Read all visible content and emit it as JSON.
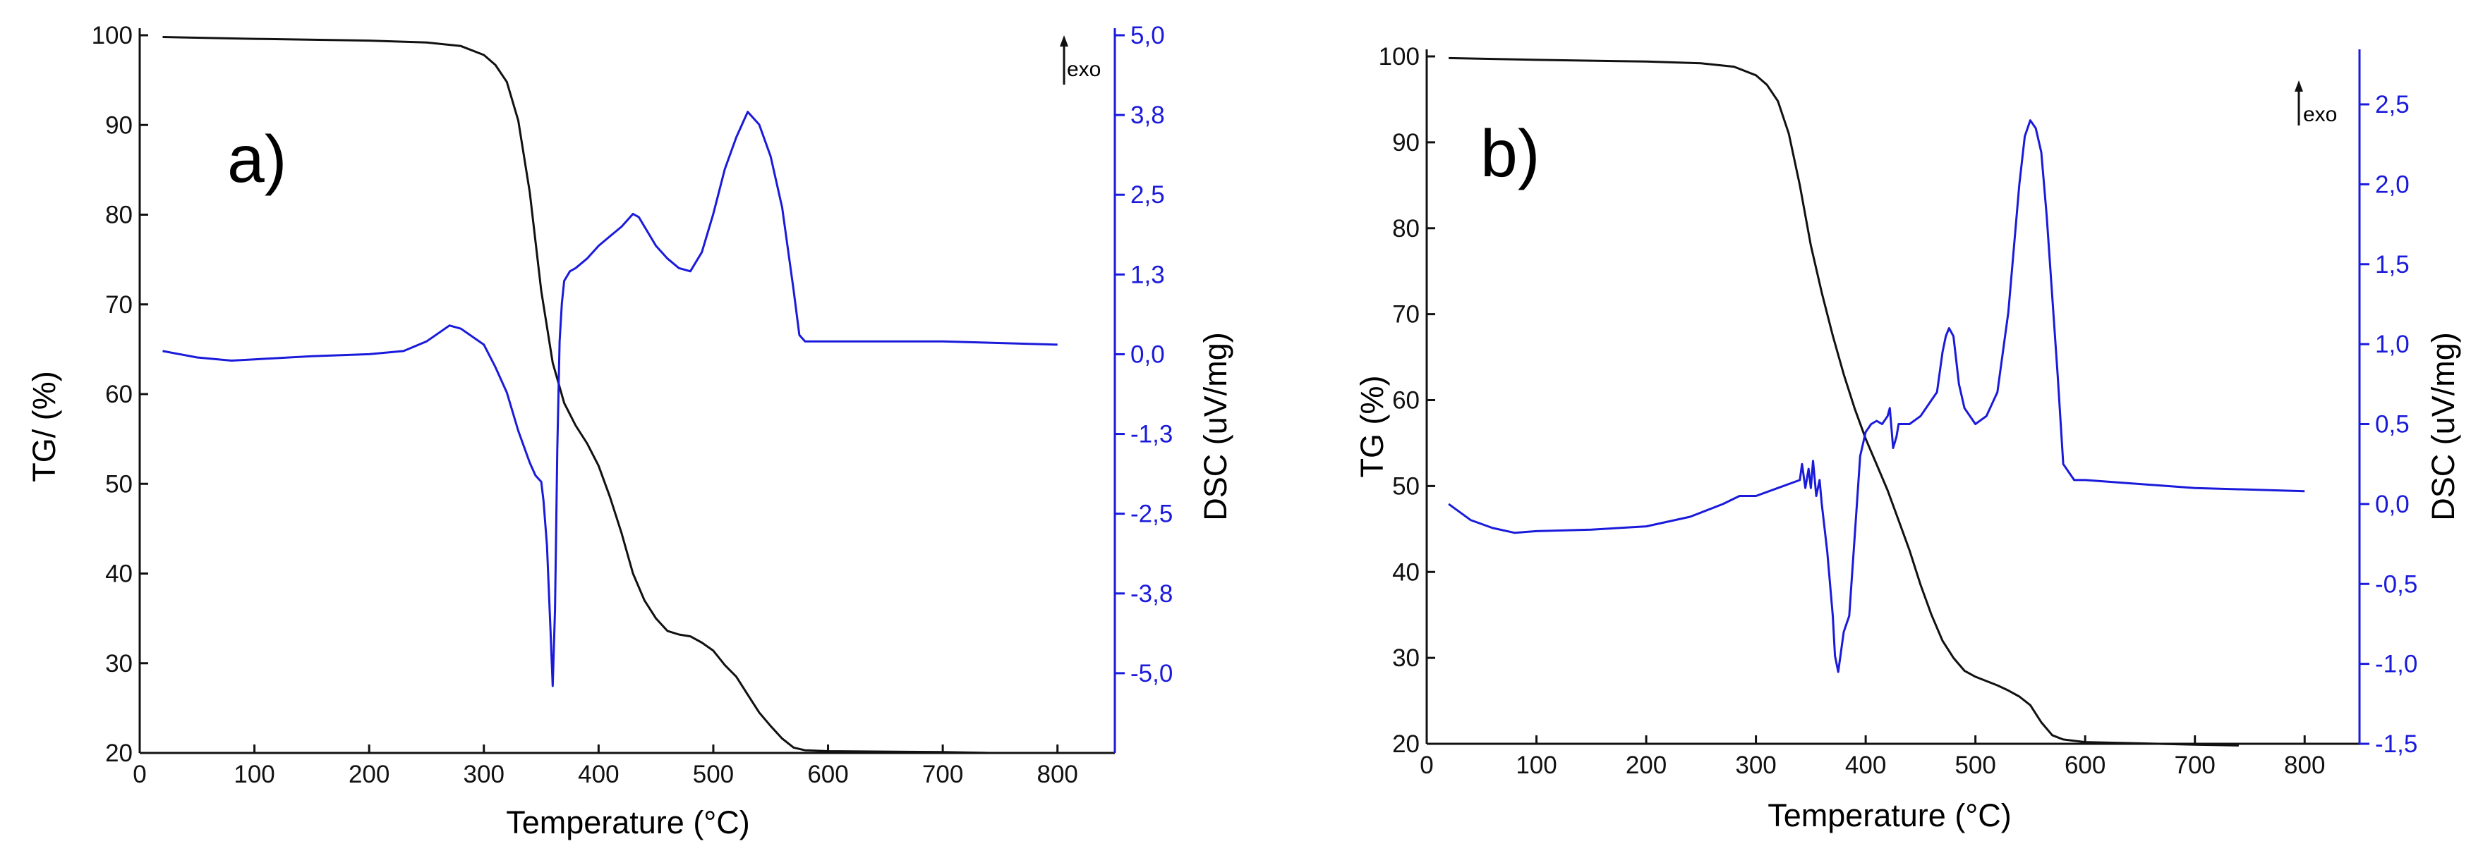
{
  "colors": {
    "tg": "#111111",
    "dsc": "#1a1adb",
    "axis": "#111111"
  },
  "chart_data": [
    {
      "type": "line",
      "panel_label": "a)",
      "xlabel": "Temperature (°C)",
      "ylabel_left": "TG/ (%)",
      "ylabel_right": "DSC (uV/mg)",
      "exo_label": "exo",
      "xlim": [
        0,
        850
      ],
      "ylim_left": [
        20,
        100
      ],
      "ylim_right": [
        -6.25,
        5.0
      ],
      "xticks": [
        0,
        100,
        200,
        300,
        400,
        500,
        600,
        700,
        800
      ],
      "xtick_labels": [
        "0",
        "100",
        "200",
        "300",
        "400",
        "500",
        "600",
        "700",
        "800"
      ],
      "yticks_left": [
        20,
        30,
        40,
        50,
        60,
        70,
        80,
        90,
        100
      ],
      "ytick_labels_left": [
        "20",
        "30",
        "40",
        "50",
        "60",
        "70",
        "80",
        "90",
        "100"
      ],
      "yticks_right": [
        5.0,
        3.75,
        2.5,
        1.25,
        0,
        -1.25,
        -2.5,
        -3.75,
        -5.0
      ],
      "ytick_labels_right": [
        "5,0",
        "3,8",
        "2,5",
        "1,3",
        "0,0",
        "-1,3",
        "-2,5",
        "-3,8",
        "-5,0"
      ],
      "series": [
        {
          "name": "TG",
          "axis": "left",
          "x": [
            20,
            100,
            200,
            250,
            280,
            300,
            310,
            320,
            330,
            340,
            350,
            360,
            370,
            380,
            390,
            400,
            410,
            420,
            430,
            440,
            450,
            460,
            470,
            480,
            490,
            500,
            510,
            520,
            530,
            540,
            550,
            560,
            570,
            580,
            600,
            700,
            740
          ],
          "y": [
            99.8,
            99.6,
            99.4,
            99.2,
            98.8,
            97.8,
            96.7,
            94.8,
            90.5,
            82.5,
            71.5,
            63.5,
            59,
            56.5,
            54.5,
            52,
            48.5,
            44.5,
            40,
            37,
            35,
            33.6,
            33.2,
            33,
            32.3,
            31.4,
            29.8,
            28.5,
            26.5,
            24.5,
            23,
            21.6,
            20.6,
            20.3,
            20.2,
            20.1,
            20
          ]
        },
        {
          "name": "DSC",
          "axis": "right",
          "x": [
            20,
            50,
            80,
            100,
            150,
            200,
            230,
            250,
            270,
            280,
            300,
            310,
            320,
            330,
            340,
            345,
            350,
            352,
            355,
            358,
            360,
            362,
            364,
            366,
            368,
            370,
            375,
            380,
            390,
            400,
            410,
            420,
            430,
            435,
            440,
            445,
            450,
            460,
            470,
            480,
            490,
            500,
            510,
            520,
            530,
            540,
            550,
            560,
            570,
            575,
            580,
            600,
            700,
            800
          ],
          "y": [
            0.05,
            -0.05,
            -0.1,
            -0.08,
            -0.03,
            0.0,
            0.05,
            0.2,
            0.45,
            0.4,
            0.15,
            -0.2,
            -0.6,
            -1.2,
            -1.7,
            -1.9,
            -2.0,
            -2.3,
            -3.0,
            -4.3,
            -5.2,
            -4.0,
            -1.5,
            0.2,
            0.8,
            1.15,
            1.3,
            1.35,
            1.5,
            1.7,
            1.85,
            2.0,
            2.2,
            2.15,
            2.0,
            1.85,
            1.7,
            1.5,
            1.35,
            1.3,
            1.6,
            2.2,
            2.9,
            3.4,
            3.8,
            3.6,
            3.1,
            2.3,
            1.0,
            0.3,
            0.2,
            0.2,
            0.2,
            0.15
          ]
        }
      ]
    },
    {
      "type": "line",
      "panel_label": "b)",
      "xlabel": "Temperature (°C)",
      "ylabel_left": "TG (%)",
      "ylabel_right": "DSC (uV/mg)",
      "exo_label": "exo",
      "xlim": [
        0,
        850
      ],
      "ylim_left": [
        20,
        100
      ],
      "ylim_right": [
        -1.5,
        2.8
      ],
      "xticks": [
        0,
        100,
        200,
        300,
        400,
        500,
        600,
        700,
        800
      ],
      "xtick_labels": [
        "0",
        "100",
        "200",
        "300",
        "400",
        "500",
        "600",
        "700",
        "800"
      ],
      "yticks_left": [
        20,
        30,
        40,
        50,
        60,
        70,
        80,
        90,
        100
      ],
      "ytick_labels_left": [
        "20",
        "30",
        "40",
        "50",
        "60",
        "70",
        "80",
        "90",
        "100"
      ],
      "yticks_right": [
        2.5,
        2.0,
        1.5,
        1.0,
        0.5,
        0.0,
        -0.5,
        -1.0,
        -1.5
      ],
      "ytick_labels_right": [
        "2,5",
        "2,0",
        "1,5",
        "1,0",
        "0,5",
        "0,0",
        "-0,5",
        "-1,0",
        "-1,5"
      ],
      "series": [
        {
          "name": "TG",
          "axis": "left",
          "x": [
            20,
            100,
            200,
            250,
            280,
            300,
            310,
            320,
            330,
            340,
            350,
            360,
            370,
            380,
            390,
            400,
            410,
            420,
            430,
            440,
            450,
            460,
            470,
            480,
            490,
            500,
            510,
            520,
            530,
            540,
            550,
            560,
            570,
            580,
            600,
            700,
            740
          ],
          "y": [
            99.8,
            99.6,
            99.4,
            99.2,
            98.8,
            97.8,
            96.7,
            94.8,
            91,
            85,
            78,
            72.5,
            67.5,
            63,
            59,
            55.5,
            52.5,
            49.5,
            46,
            42.5,
            38.5,
            35,
            32,
            30,
            28.5,
            27.8,
            27.3,
            26.8,
            26.2,
            25.5,
            24.5,
            22.5,
            21,
            20.5,
            20.2,
            19.9,
            19.8
          ]
        },
        {
          "name": "DSC",
          "axis": "right",
          "x": [
            20,
            40,
            60,
            80,
            100,
            150,
            200,
            240,
            270,
            285,
            300,
            320,
            340,
            342,
            345,
            348,
            350,
            352,
            355,
            358,
            360,
            365,
            370,
            372,
            375,
            380,
            385,
            390,
            395,
            400,
            405,
            410,
            415,
            420,
            422,
            425,
            428,
            430,
            440,
            450,
            460,
            465,
            470,
            473,
            476,
            480,
            485,
            490,
            500,
            510,
            520,
            530,
            535,
            540,
            545,
            550,
            555,
            560,
            565,
            570,
            575,
            580,
            590,
            600,
            700,
            800
          ],
          "y": [
            0.0,
            -0.1,
            -0.15,
            -0.18,
            -0.17,
            -0.16,
            -0.14,
            -0.08,
            0.0,
            0.05,
            0.05,
            0.1,
            0.15,
            0.25,
            0.1,
            0.22,
            0.1,
            0.27,
            0.05,
            0.15,
            0.0,
            -0.3,
            -0.7,
            -0.95,
            -1.05,
            -0.8,
            -0.7,
            -0.2,
            0.3,
            0.45,
            0.5,
            0.52,
            0.5,
            0.55,
            0.6,
            0.35,
            0.42,
            0.5,
            0.5,
            0.55,
            0.65,
            0.7,
            0.95,
            1.05,
            1.1,
            1.05,
            0.75,
            0.6,
            0.5,
            0.55,
            0.7,
            1.2,
            1.6,
            2.0,
            2.3,
            2.4,
            2.35,
            2.2,
            1.8,
            1.3,
            0.8,
            0.25,
            0.15,
            0.15,
            0.1,
            0.08
          ]
        }
      ]
    }
  ]
}
